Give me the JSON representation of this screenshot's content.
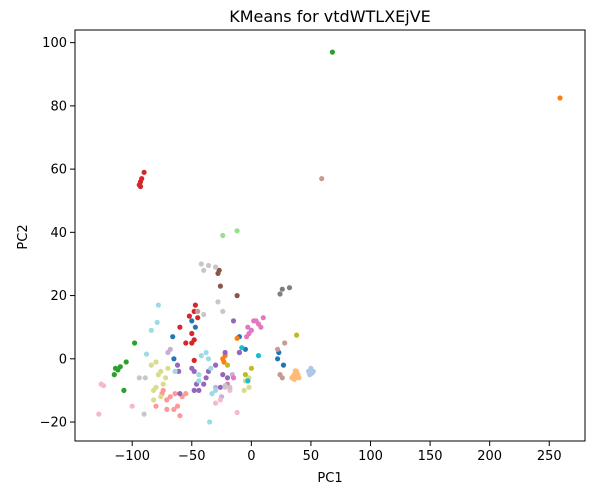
{
  "chart_data": {
    "type": "scatter",
    "title": "KMeans for vtdWTLXEjVE",
    "xlabel": "PC1",
    "ylabel": "PC2",
    "xlim": [
      -148,
      280
    ],
    "ylim": [
      -26,
      104
    ],
    "xticks": [
      -100,
      -50,
      0,
      50,
      100,
      150,
      200,
      250
    ],
    "yticks": [
      -20,
      0,
      20,
      40,
      60,
      80,
      100
    ],
    "grid": false,
    "legend": "none",
    "series": [
      {
        "color": "#1f77b4",
        "points": [
          [
            -66,
            7
          ],
          [
            -65,
            0
          ],
          [
            -50,
            12
          ],
          [
            -47,
            10
          ],
          [
            -10,
            7
          ],
          [
            -5,
            3
          ],
          [
            22,
            0
          ],
          [
            23,
            2
          ],
          [
            27,
            -2
          ]
        ]
      },
      {
        "color": "#aec7e8",
        "points": [
          [
            48,
            -4
          ],
          [
            50,
            -3
          ],
          [
            52,
            -4
          ],
          [
            49,
            -5
          ],
          [
            51,
            -4.5
          ]
        ]
      },
      {
        "color": "#ff7f0e",
        "points": [
          [
            259,
            82.5
          ],
          [
            -12,
            6.5
          ],
          [
            -10,
            2
          ],
          [
            -22,
            1
          ],
          [
            -23,
            -1
          ],
          [
            -24,
            0
          ]
        ]
      },
      {
        "color": "#ffbb78",
        "points": [
          [
            34,
            -6
          ],
          [
            35,
            -5.5
          ],
          [
            36,
            -5
          ],
          [
            37,
            -4.5
          ],
          [
            38,
            -4
          ],
          [
            39,
            -5
          ],
          [
            40,
            -6
          ],
          [
            36,
            -6.5
          ],
          [
            37,
            -3.8
          ],
          [
            38,
            -5.8
          ]
        ]
      },
      {
        "color": "#2ca02c",
        "points": [
          [
            68,
            97
          ],
          [
            -115,
            -5
          ],
          [
            -114,
            -3
          ],
          [
            -112,
            -3.5
          ],
          [
            -110,
            -2.5
          ],
          [
            -105,
            -1
          ],
          [
            -98,
            5
          ],
          [
            -107,
            -10
          ]
        ]
      },
      {
        "color": "#98df8a",
        "points": [
          [
            -24,
            39
          ],
          [
            -12,
            40.5
          ]
        ]
      },
      {
        "color": "#d62728",
        "points": [
          [
            -94,
            55
          ],
          [
            -93,
            56
          ],
          [
            -92,
            57
          ],
          [
            -90,
            59
          ],
          [
            -93,
            54.5
          ],
          [
            -52,
            13.5
          ],
          [
            -48,
            15
          ],
          [
            -47,
            17
          ],
          [
            -45,
            13
          ],
          [
            -50,
            5
          ],
          [
            -55,
            5
          ],
          [
            -48,
            6
          ],
          [
            -60,
            10
          ],
          [
            -50,
            8
          ],
          [
            -48,
            -0.5
          ]
        ]
      },
      {
        "color": "#ff9896",
        "points": [
          [
            -80,
            -15
          ],
          [
            -74,
            -10
          ],
          [
            -71,
            -13
          ],
          [
            -68,
            -12
          ],
          [
            -65,
            -16
          ],
          [
            -62,
            -15
          ],
          [
            -60,
            -18
          ],
          [
            -58,
            -12
          ],
          [
            -55,
            -11
          ],
          [
            -75,
            -11
          ],
          [
            -71,
            -16
          ],
          [
            -64,
            -11
          ]
        ]
      },
      {
        "color": "#9467bd",
        "points": [
          [
            -62,
            -2
          ],
          [
            -61,
            -4
          ],
          [
            -60,
            -11
          ],
          [
            -50,
            -3
          ],
          [
            -48,
            -4
          ],
          [
            -46,
            -8
          ],
          [
            -44,
            -10
          ],
          [
            -40,
            -8
          ],
          [
            -38,
            -6
          ],
          [
            -36,
            -4
          ],
          [
            -30,
            -2
          ],
          [
            -24,
            -5
          ],
          [
            -22,
            2
          ],
          [
            -15,
            12
          ],
          [
            -10,
            2
          ],
          [
            -20,
            -6
          ],
          [
            -26,
            -9
          ],
          [
            -48,
            -10
          ]
        ]
      },
      {
        "color": "#c5b0d5",
        "points": [
          [
            -70,
            2
          ],
          [
            -68,
            3
          ],
          [
            -30,
            -9
          ],
          [
            -25,
            -12
          ],
          [
            -16,
            -5
          ]
        ]
      },
      {
        "color": "#8c564b",
        "points": [
          [
            -28,
            27
          ],
          [
            -27,
            28
          ],
          [
            -26,
            23
          ],
          [
            -12,
            20
          ]
        ]
      },
      {
        "color": "#c49c94",
        "points": [
          [
            59,
            57
          ],
          [
            -45,
            15
          ],
          [
            28,
            5
          ],
          [
            22,
            3
          ],
          [
            24,
            -5
          ],
          [
            26,
            -6
          ]
        ]
      },
      {
        "color": "#e377c2",
        "points": [
          [
            -3,
            10
          ],
          [
            -2,
            8
          ],
          [
            0,
            9
          ],
          [
            2,
            12
          ],
          [
            4,
            12
          ],
          [
            6,
            11
          ],
          [
            8,
            10
          ],
          [
            10,
            13
          ],
          [
            -4,
            7
          ],
          [
            -20,
            -8
          ],
          [
            -15,
            -6
          ]
        ]
      },
      {
        "color": "#f7b6d2",
        "points": [
          [
            -126,
            -8
          ],
          [
            -124,
            -8.5
          ],
          [
            -128,
            -17.5
          ],
          [
            -100,
            -15
          ],
          [
            -30,
            -14
          ],
          [
            -18,
            -10
          ],
          [
            -12,
            -17
          ],
          [
            -22,
            -9
          ],
          [
            -26,
            -13
          ]
        ]
      },
      {
        "color": "#7f7f7f",
        "points": [
          [
            24,
            20.5
          ],
          [
            26,
            22
          ],
          [
            32,
            22.5
          ]
        ]
      },
      {
        "color": "#c7c7c7",
        "points": [
          [
            -42,
            30
          ],
          [
            -36,
            29.5
          ],
          [
            -30,
            29
          ],
          [
            -40,
            28
          ],
          [
            -28,
            18
          ],
          [
            -24,
            15
          ],
          [
            -40,
            14
          ],
          [
            -94,
            -6
          ],
          [
            -89,
            -6
          ],
          [
            -90,
            -17.5
          ],
          [
            -22,
            -8.5
          ],
          [
            -18,
            -9
          ]
        ]
      },
      {
        "color": "#bcbd22",
        "points": [
          [
            -20,
            -2
          ],
          [
            -5,
            -5
          ],
          [
            0,
            -3
          ],
          [
            38,
            7.5
          ]
        ]
      },
      {
        "color": "#dbdb8d",
        "points": [
          [
            -82,
            -10
          ],
          [
            -80,
            -9
          ],
          [
            -78,
            -5
          ],
          [
            -76,
            -4
          ],
          [
            -74,
            -8
          ],
          [
            -72,
            -6
          ],
          [
            -70,
            -3
          ],
          [
            -84,
            -2
          ],
          [
            -80,
            -1
          ],
          [
            -76,
            -12
          ],
          [
            -82,
            -13
          ],
          [
            -5,
            -7
          ],
          [
            -2,
            -6
          ],
          [
            -2,
            -9
          ],
          [
            -6,
            -10
          ]
        ]
      },
      {
        "color": "#17becf",
        "points": [
          [
            -3,
            -7
          ],
          [
            6,
            1
          ],
          [
            -8,
            3.5
          ]
        ]
      },
      {
        "color": "#9edae5",
        "points": [
          [
            -78,
            17
          ],
          [
            -84,
            9
          ],
          [
            -79,
            11.5
          ],
          [
            -88,
            1.5
          ],
          [
            -64,
            -4
          ],
          [
            -44,
            -5
          ],
          [
            -42,
            1
          ],
          [
            -38,
            2
          ],
          [
            -34,
            -3
          ],
          [
            -33,
            -11
          ],
          [
            -30,
            -10
          ],
          [
            -35,
            -20
          ],
          [
            -44,
            -7
          ],
          [
            -36,
            0
          ]
        ]
      }
    ]
  }
}
